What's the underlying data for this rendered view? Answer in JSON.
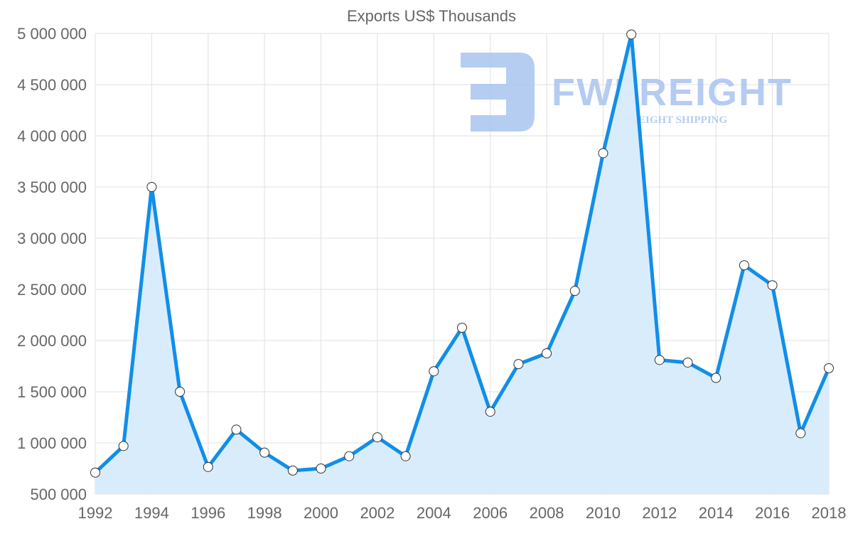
{
  "chart_data": {
    "type": "area",
    "title": "Exports US$ Thousands",
    "xlabel": "",
    "ylabel": "",
    "x": [
      1992,
      1993,
      1994,
      1995,
      1996,
      1997,
      1998,
      1999,
      2000,
      2001,
      2002,
      2003,
      2004,
      2005,
      2006,
      2007,
      2008,
      2009,
      2010,
      2011,
      2012,
      2013,
      2014,
      2015,
      2016,
      2017,
      2018
    ],
    "series": [
      {
        "name": "Exports US$ Thousands",
        "values": [
          710000,
          970000,
          3500000,
          1500000,
          765000,
          1130000,
          905000,
          730000,
          750000,
          870000,
          1055000,
          870000,
          1700000,
          2125000,
          1305000,
          1770000,
          1875000,
          2485000,
          3830000,
          4990000,
          1810000,
          1785000,
          1635000,
          2735000,
          2540000,
          1095000,
          1730000
        ]
      }
    ],
    "ylim": [
      500000,
      5000000
    ],
    "y_ticks": [
      500000,
      1000000,
      1500000,
      2000000,
      2500000,
      3000000,
      3500000,
      4000000,
      4500000,
      5000000
    ],
    "y_tick_labels": [
      "500 000",
      "1 000 000",
      "1 500 000",
      "2 000 000",
      "2 500 000",
      "3 000 000",
      "3 500 000",
      "4 000 000",
      "4 500 000",
      "5 000 000"
    ],
    "x_tick_labels": [
      "1992",
      "1994",
      "1996",
      "1998",
      "2000",
      "2002",
      "2004",
      "2006",
      "2008",
      "2010",
      "2012",
      "2014",
      "2016",
      "2018"
    ],
    "grid": true,
    "legend": "none",
    "colors": {
      "line": "#118ee9",
      "fill": "#d7ebfb",
      "grid": "#e0e0e0",
      "text": "#666666",
      "point_fill": "#ffffff",
      "point_stroke": "#333333"
    }
  },
  "watermark": {
    "brand": "FWFREIGHT",
    "tagline": "FREIGHT SHIPPING",
    "color": "#a9c4f0"
  }
}
